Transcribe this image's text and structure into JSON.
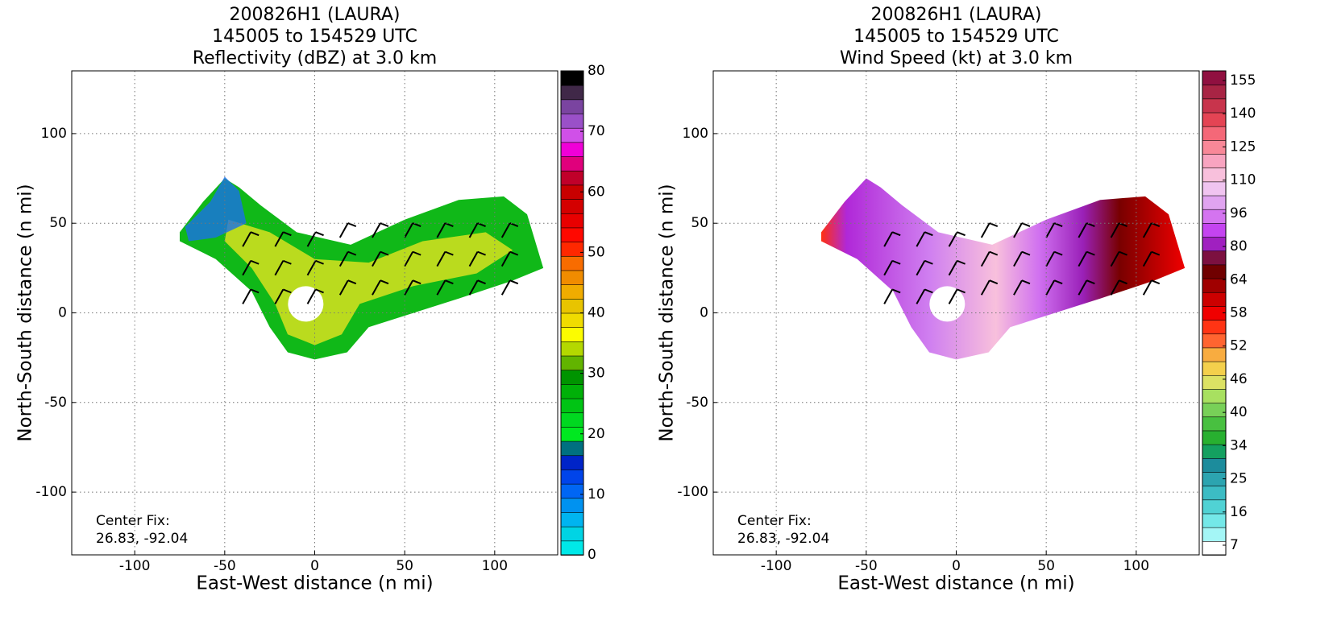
{
  "chart_data": [
    {
      "type": "radar",
      "title": [
        "200826H1 (LAURA)",
        "145005 to 154529 UTC",
        "Reflectivity (dBZ) at 3.0 km"
      ],
      "xlabel": "East-West distance (n mi)",
      "ylabel": "North-South distance (n mi)",
      "annotation": [
        "Center Fix:",
        "26.83, -92.04"
      ],
      "xlim": [
        -135,
        135
      ],
      "ylim": [
        -135,
        135
      ],
      "xticks": [
        -100,
        -50,
        0,
        50,
        100
      ],
      "yticks": [
        -100,
        -50,
        0,
        50,
        100
      ],
      "grid": true,
      "cbar_lim": [
        0,
        80
      ],
      "cbar_ticks": [
        0,
        10,
        20,
        30,
        40,
        50,
        60,
        70,
        80
      ],
      "cbar_colors": [
        "#00e8e8",
        "#00d4e4",
        "#00b4f0",
        "#0092f0",
        "#0066f4",
        "#0044ea",
        "#0024c8",
        "#007080",
        "#00e820",
        "#00d820",
        "#00c414",
        "#00b008",
        "#009400",
        "#62b400",
        "#b4d800",
        "#fcfc00",
        "#f0dc00",
        "#e8c400",
        "#f0ac00",
        "#f08c00",
        "#f86c00",
        "#ff2800",
        "#ff0800",
        "#e80000",
        "#d40000",
        "#c80000",
        "#c0002a",
        "#e0007c",
        "#f000d8",
        "#d050e8",
        "#9a50c8",
        "#7a44a0",
        "#402848",
        "#000000"
      ]
    },
    {
      "type": "radar",
      "title": [
        "200826H1 (LAURA)",
        "145005 to 154529 UTC",
        "Wind Speed (kt) at 3.0 km"
      ],
      "xlabel": "East-West distance (n mi)",
      "ylabel": "North-South distance (n mi)",
      "annotation": [
        "Center Fix:",
        "26.83, -92.04"
      ],
      "xlim": [
        -135,
        135
      ],
      "ylim": [
        -135,
        135
      ],
      "xticks": [
        -100,
        -50,
        0,
        50,
        100
      ],
      "yticks": [
        -100,
        -50,
        0,
        50,
        100
      ],
      "grid": true,
      "cbar_ticks": [
        7,
        16,
        25,
        34,
        40,
        46,
        52,
        58,
        64,
        80,
        96,
        110,
        125,
        140,
        155
      ],
      "cbar_colors": [
        "#ffffff",
        "#a4f6f6",
        "#74e8e8",
        "#50d2d4",
        "#3cbcc4",
        "#2ca4b0",
        "#1c8c9c",
        "#14a060",
        "#28b030",
        "#48c040",
        "#78d058",
        "#a8e060",
        "#dce264",
        "#f4d04c",
        "#f8ac40",
        "#ff6430",
        "#ff3414",
        "#f00000",
        "#cc0000",
        "#a00000",
        "#700000",
        "#7c1040",
        "#a020c0",
        "#c444f0",
        "#d474f0",
        "#e0a4f0",
        "#f0c4f0",
        "#f8c0dc",
        "#f8a4c0",
        "#f88898",
        "#f46878",
        "#e44454",
        "#c8344c",
        "#a82444",
        "#901040"
      ]
    }
  ]
}
